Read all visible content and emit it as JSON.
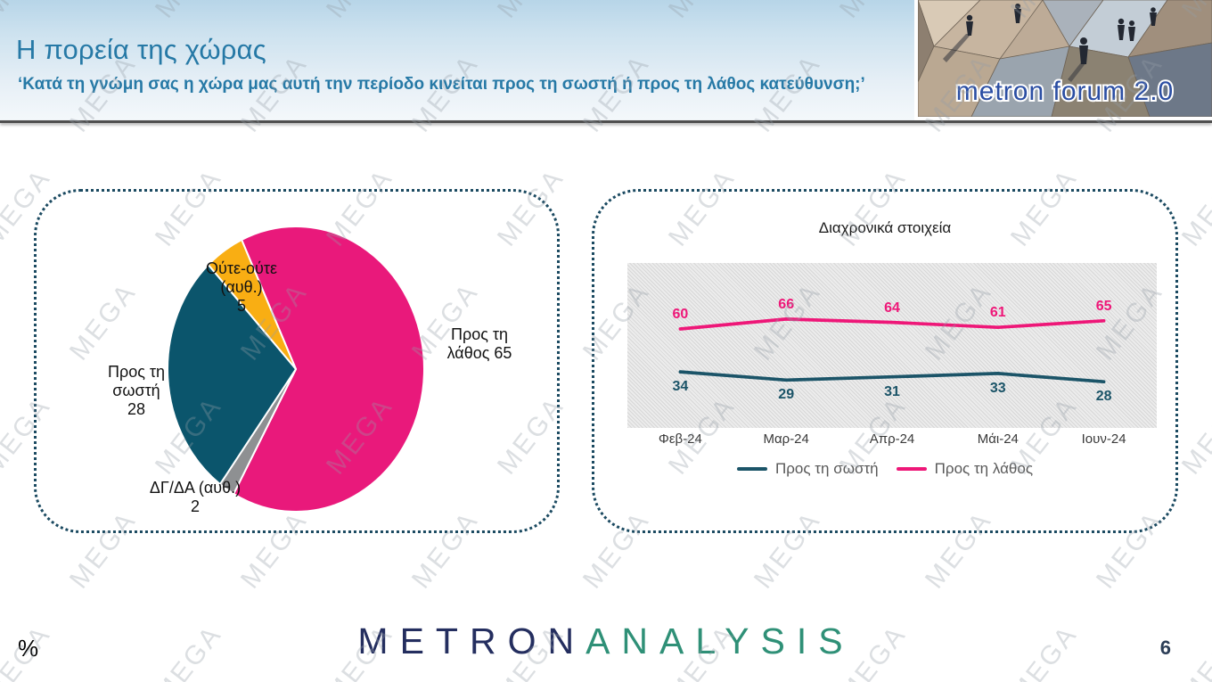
{
  "header": {
    "title": "Η πορεία της χώρας",
    "subtitle": "‘Κατά τη γνώμη σας η χώρα μας αυτή την περίοδο κινείται προς τη σωστή ή προς τη λάθος κατεύθυνση;’",
    "logo_text": "metron forum 2.0"
  },
  "watermark": {
    "text": "MEGA"
  },
  "footer": {
    "percent_label": "%",
    "page_number": "6",
    "brand_part1": "METRON",
    "brand_part2": "ANALYSIS"
  },
  "colors": {
    "accent_blue": "#2679a6",
    "panel_border": "#1b4a61",
    "pink": "#e9197b",
    "teal": "#0b556c",
    "yellow": "#f9ae13",
    "gray": "#8e9092"
  },
  "chart_data": [
    {
      "type": "pie",
      "title": "",
      "categories": [
        "Προς τη λάθος",
        "ΔΓ/ΔΑ (αυθ.)",
        "Προς τη σωστή",
        "Ούτε-ούτε (αυθ.)"
      ],
      "values": [
        65,
        2,
        28,
        5
      ],
      "colors": [
        "#e9197b",
        "#8e9092",
        "#0b556c",
        "#f9ae13"
      ],
      "start_angle_deg": -25,
      "labels": {
        "lathos": "Προς τη\nλάθος 65",
        "oute": "Ούτε-ούτε\n(αυθ.)\n5",
        "sosti": "Προς τη\nσωστή\n28",
        "dgda": "ΔΓ/ΔΑ (αυθ.)\n2"
      }
    },
    {
      "type": "line",
      "title": "Διαχρονικά στοιχεία",
      "categories": [
        "Φεβ-24",
        "Μαρ-24",
        "Απρ-24",
        "Μάι-24",
        "Ιουν-24"
      ],
      "series": [
        {
          "name": "Προς τη σωστή",
          "color": "#1b5468",
          "values": [
            34,
            29,
            31,
            33,
            28
          ]
        },
        {
          "name": "Προς τη λάθος",
          "color": "#ee1778",
          "values": [
            60,
            66,
            64,
            61,
            65
          ]
        }
      ],
      "ylim": [
        0,
        100
      ],
      "grid": false,
      "legend_position": "bottom",
      "plot_background": "hatched-gray"
    }
  ]
}
